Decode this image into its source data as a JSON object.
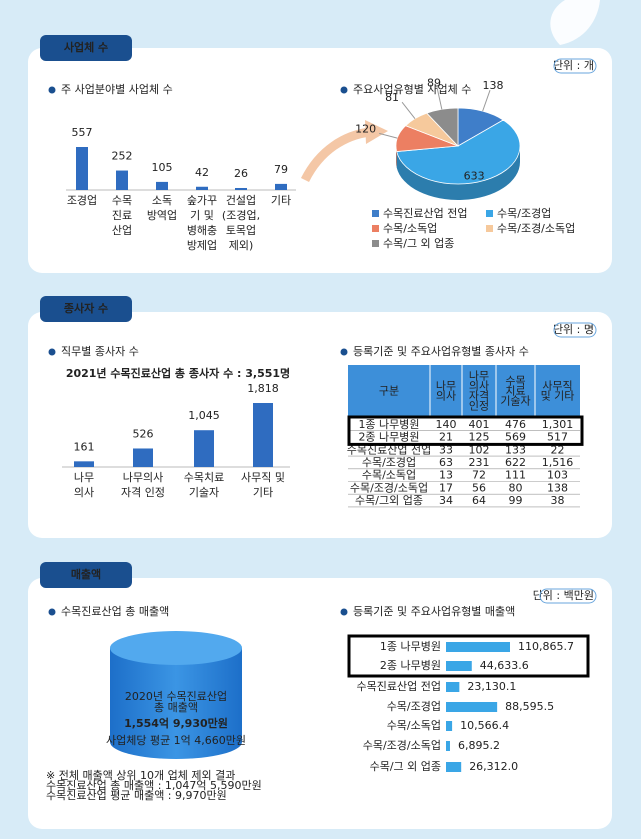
{
  "sections": [
    {
      "title": "사업체 수",
      "unit": "단위 : 개"
    },
    {
      "title": "종사자 수",
      "unit": "단위 : 명"
    },
    {
      "title": "매출액",
      "unit": "단위 : 백만원"
    }
  ],
  "chart_data": [
    {
      "type": "bar",
      "title": "주 사업분야별 사업체 수",
      "categories": [
        "조경업",
        "수목\n진료\n산업",
        "소독\n방역업",
        "숲가꾸\n기 및\n병해충\n방제업",
        "건설업\n(조경업,\n토목업\n제외)",
        "기타"
      ],
      "values": [
        557,
        252,
        105,
        42,
        26,
        79
      ],
      "color": "#2f6cc0"
    },
    {
      "type": "pie",
      "title": "주요사업유형별 사업체 수",
      "series": [
        {
          "name": "수목진료산업 전업",
          "color": "#3f7ec9",
          "values": [
            138
          ]
        },
        {
          "name": "수목/조경업",
          "color": "#3aa6e6",
          "values": [
            633
          ]
        },
        {
          "name": "수목/소독업",
          "color": "#ec7f62",
          "values": [
            120
          ]
        },
        {
          "name": "수목/조경/소독업",
          "color": "#f6c99c",
          "values": [
            81
          ]
        },
        {
          "name": "수목/그 외 업종",
          "color": "#8c8c8c",
          "values": [
            89
          ]
        }
      ]
    },
    {
      "type": "bar",
      "title": "직무별 종사자 수",
      "subtitle": "2021년 수목진료산업 총 종사자 수 : 3,551명",
      "categories": [
        "나무\n의사",
        "나무의사\n자격 인정",
        "수목치료\n기술자",
        "사무직 및\n기타"
      ],
      "values": [
        161,
        526,
        1045,
        1818
      ],
      "value_labels": [
        "161",
        "526",
        "1,045",
        "1,818"
      ],
      "color": "#2f6cc0"
    },
    {
      "type": "hbar",
      "title": "등록기준 및 주요사업유형별 매출액",
      "categories": [
        "1종 나무병원",
        "2종 나무병원",
        "수목진료산업 전업",
        "수목/조경업",
        "수목/소독업",
        "수목/조경/소독업",
        "수목/그 외 업종"
      ],
      "values": [
        110865.7,
        44633.6,
        23130.1,
        88595.5,
        10566.4,
        6895.2,
        26312.0
      ],
      "value_labels": [
        "110,865.7",
        "44,633.6",
        "23,130.1",
        "88,595.5",
        "10,566.4",
        "6,895.2",
        "26,312.0"
      ],
      "color": "#3aa6e6"
    }
  ],
  "table": {
    "title": "등록기준 및 주요사업유형별 종사자 수",
    "header": [
      "구분",
      "나무\n의사",
      "나무\n의사\n자격\n인정",
      "수목\n치료\n기술자",
      "사무직\n및 기타"
    ],
    "rows": [
      [
        "1종 나무병원",
        "140",
        "401",
        "476",
        "1,301"
      ],
      [
        "2종 나무병원",
        "21",
        "125",
        "569",
        "517"
      ],
      [
        "수목진료산업 전업",
        "33",
        "102",
        "133",
        "22"
      ],
      [
        "수목/조경업",
        "63",
        "231",
        "622",
        "1,516"
      ],
      [
        "수목/소독업",
        "13",
        "72",
        "111",
        "103"
      ],
      [
        "수목/조경/소독업",
        "17",
        "56",
        "80",
        "138"
      ],
      [
        "수목/그외 업종",
        "34",
        "64",
        "99",
        "38"
      ]
    ]
  },
  "total_sales": {
    "title": "수목진료산업 총 매출액",
    "caption": "2020년 수목진료산업\n총 매출액",
    "amount": "1,554억 9,930만원",
    "average": "사업체당 평균 1억 4,660만원",
    "notes": [
      "※ 전체 매출액 상위 10개 업체 제외 결과",
      "수목진료산업 총 매출액 : 1,047억 5,590만원",
      "수목진료산업 평균 매출액 : 9,970만원"
    ]
  }
}
